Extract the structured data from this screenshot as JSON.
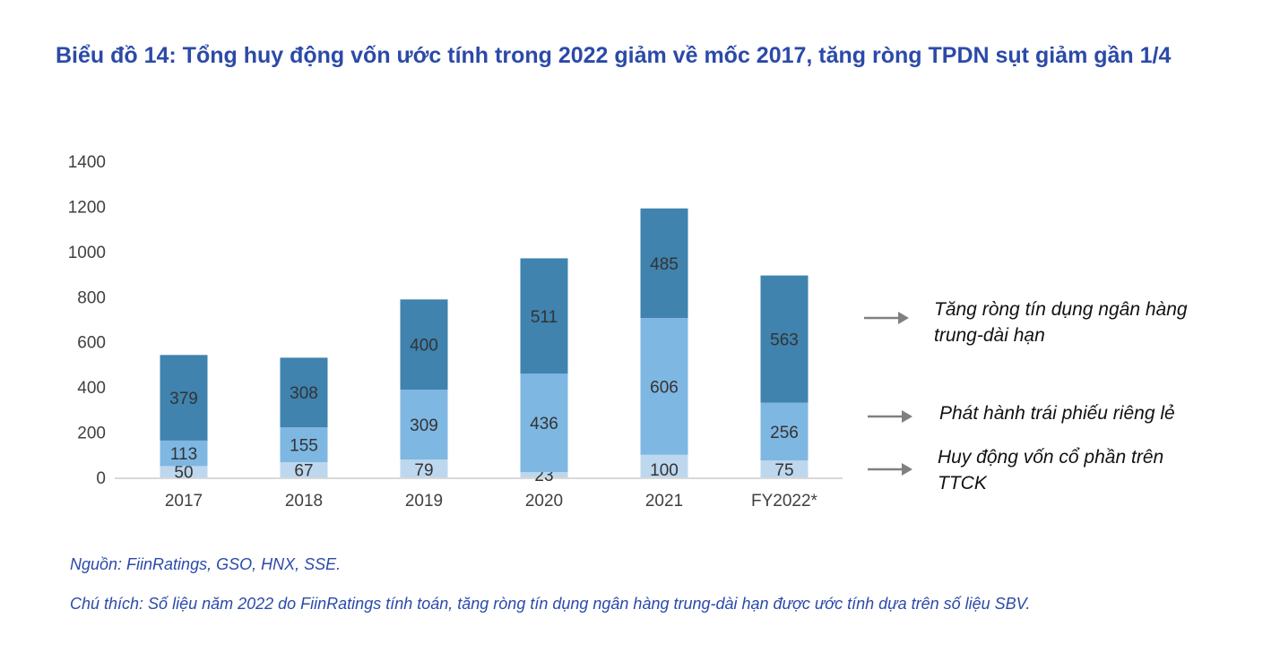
{
  "title": "Biểu đồ 14: Tổng huy động vốn ước tính trong 2022 giảm về mốc 2017, tăng ròng TPDN sụt giảm gần 1/4",
  "chart_data": {
    "type": "bar",
    "stacked": true,
    "categories": [
      "2017",
      "2018",
      "2019",
      "2020",
      "2021",
      "FY2022*"
    ],
    "series": [
      {
        "name": "Huy động vốn cổ phần trên TTCK",
        "values": [
          50,
          67,
          79,
          23,
          100,
          75
        ],
        "color": "#BDD7EE"
      },
      {
        "name": "Phát hành trái phiếu riêng lẻ",
        "values": [
          113,
          155,
          309,
          436,
          606,
          256
        ],
        "color": "#7FB7E3"
      },
      {
        "name": "Tăng ròng tín dụng ngân hàng trung-dài hạn",
        "values": [
          379,
          308,
          400,
          511,
          485,
          563
        ],
        "color": "#3F83AE"
      }
    ],
    "yticks": [
      "0",
      "200",
      "400",
      "600",
      "800",
      "1000",
      "1200",
      "1400"
    ],
    "ylim": [
      0,
      1400
    ],
    "grid": false,
    "legend": "right, with arrows"
  },
  "notes": {
    "source": "Nguồn: FiinRatings, GSO, HNX, SSE.",
    "caption": "Chú thích: Số liệu năm 2022 do FiinRatings tính toán, tăng ròng tín dụng ngân hàng trung-dài hạn được ước tính dựa trên số liệu SBV."
  }
}
